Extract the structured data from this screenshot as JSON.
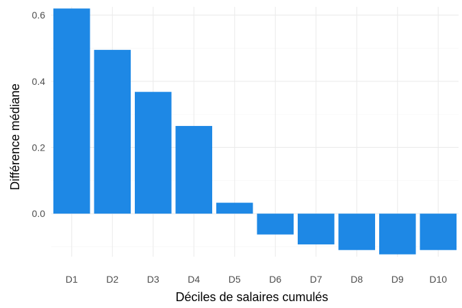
{
  "chart_data": {
    "type": "bar",
    "title": "",
    "xlabel": "Déciles de salaires cumulés",
    "ylabel": "Différence médiane",
    "categories": [
      "D1",
      "D2",
      "D3",
      "D4",
      "D5",
      "D6",
      "D7",
      "D8",
      "D9",
      "D10"
    ],
    "values": [
      0.62,
      0.495,
      0.368,
      0.265,
      0.033,
      -0.063,
      -0.093,
      -0.11,
      -0.123,
      -0.11
    ],
    "ylim": [
      -0.13,
      0.625
    ],
    "yticks": [
      0.0,
      0.2,
      0.4,
      0.6
    ],
    "ytick_labels": [
      "0.0",
      "0.2",
      "0.4",
      "0.6"
    ],
    "grid": true,
    "bar_color": "#1e88e5",
    "legend": "none"
  }
}
